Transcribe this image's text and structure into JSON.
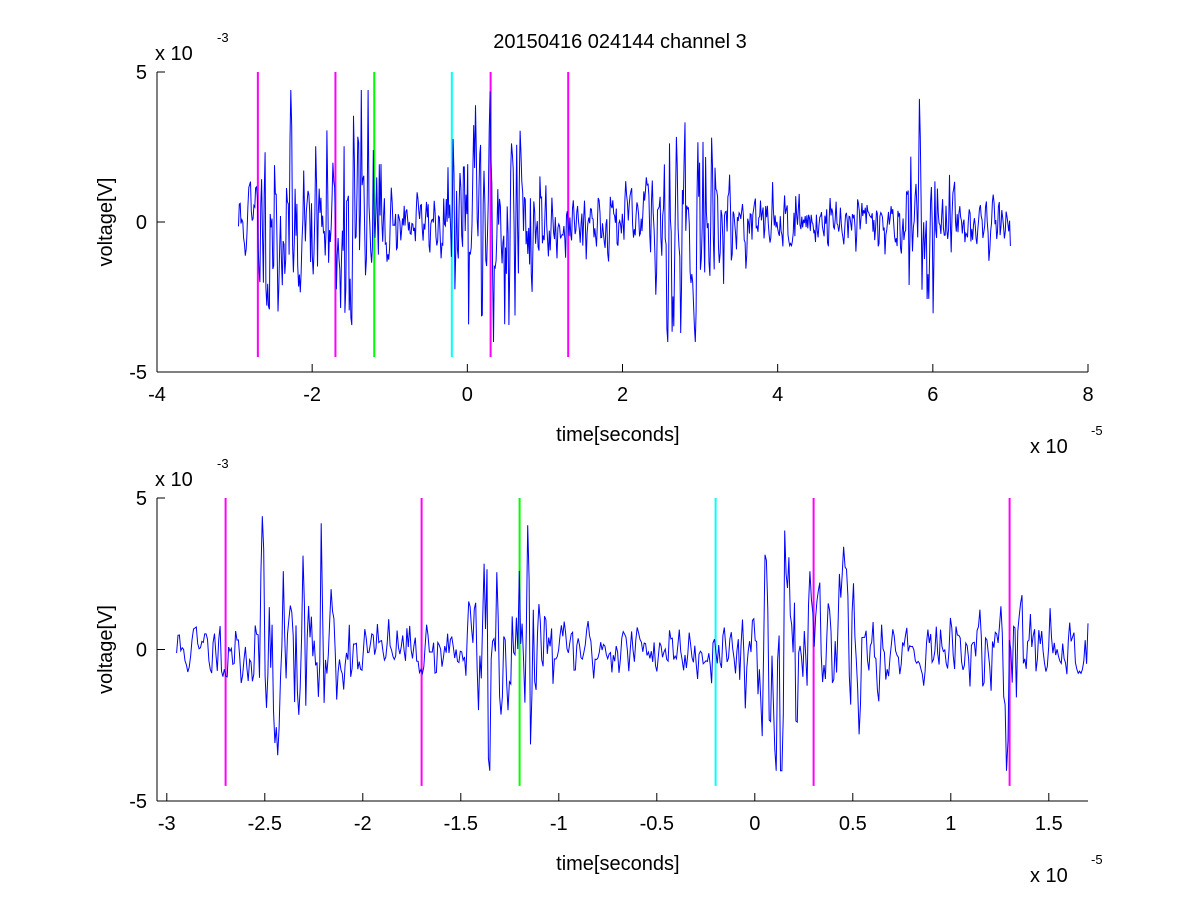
{
  "title": "20150416 024144 channel 3",
  "colors": {
    "signal": "#0000ff",
    "marker_magenta": "#ff00ff",
    "marker_green": "#00ff00",
    "marker_cyan": "#00ffff",
    "axis": "#000000"
  },
  "chart_data": [
    {
      "type": "line",
      "title": "20150416 024144 channel 3",
      "xlabel": "time[seconds]",
      "ylabel": "voltage[V]",
      "x_exponent_label": "x 10",
      "x_exponent": "-5",
      "y_exponent_label": "x 10",
      "y_exponent": "-3",
      "xlim": [
        -4,
        8
      ],
      "ylim": [
        -5,
        5
      ],
      "xticks": [
        -4,
        -2,
        0,
        2,
        4,
        6,
        8
      ],
      "xtick_labels": [
        "-4",
        "-2",
        "0",
        "2",
        "4",
        "6",
        "8"
      ],
      "yticks": [
        -5,
        0,
        5
      ],
      "ytick_labels": [
        "-5",
        "0",
        "5"
      ],
      "grid": false,
      "signal": {
        "x_start": -2.95,
        "x_end": 7.0,
        "n": 900,
        "seed": 11,
        "bursts": [
          {
            "x": -2.4,
            "amp": 1.6,
            "w": 0.35
          },
          {
            "x": -1.6,
            "amp": 1.2,
            "w": 0.3
          },
          {
            "x": -1.35,
            "amp": 1.8,
            "w": 0.25
          },
          {
            "x": 0.2,
            "amp": 1.9,
            "w": 0.4
          },
          {
            "x": 0.7,
            "amp": 1.3,
            "w": 0.3
          },
          {
            "x": 2.8,
            "amp": 2.0,
            "w": 0.4
          },
          {
            "x": 5.9,
            "amp": 1.2,
            "w": 0.3
          }
        ]
      },
      "markers": [
        {
          "x": -2.7,
          "color": "#ff00ff",
          "ymin": -4.5,
          "ymax": 5
        },
        {
          "x": -1.7,
          "color": "#ff00ff",
          "ymin": -4.5,
          "ymax": 5
        },
        {
          "x": -1.2,
          "color": "#00ff00",
          "ymin": -4.5,
          "ymax": 5
        },
        {
          "x": -0.2,
          "color": "#00ffff",
          "ymin": -4.5,
          "ymax": 5
        },
        {
          "x": 0.3,
          "color": "#ff00ff",
          "ymin": -4.5,
          "ymax": 5
        },
        {
          "x": 1.3,
          "color": "#ff00ff",
          "ymin": -4.5,
          "ymax": 5
        }
      ]
    },
    {
      "type": "line",
      "xlabel": "time[seconds]",
      "ylabel": "voltage[V]",
      "x_exponent_label": "x 10",
      "x_exponent": "-5",
      "y_exponent_label": "x 10",
      "y_exponent": "-3",
      "xlim": [
        -3.05,
        1.7
      ],
      "ylim": [
        -5,
        5
      ],
      "xticks": [
        -3,
        -2.5,
        -2,
        -1.5,
        -1,
        -0.5,
        0,
        0.5,
        1,
        1.5
      ],
      "xtick_labels": [
        "-3",
        "-2.5",
        "-2",
        "-1.5",
        "-1",
        "-0.5",
        "0",
        "0.5",
        "1",
        "1.5"
      ],
      "yticks": [
        -5,
        0,
        5
      ],
      "ytick_labels": [
        "-5",
        "0",
        "5"
      ],
      "grid": false,
      "signal": {
        "x_start": -2.95,
        "x_end": 1.7,
        "n": 650,
        "seed": 11,
        "bursts": [
          {
            "x": -2.45,
            "amp": 1.8,
            "w": 0.12
          },
          {
            "x": -2.2,
            "amp": 1.4,
            "w": 0.1
          },
          {
            "x": -1.35,
            "amp": 2.4,
            "w": 0.08
          },
          {
            "x": -1.15,
            "amp": 1.4,
            "w": 0.08
          },
          {
            "x": 0.12,
            "amp": 2.2,
            "w": 0.12
          },
          {
            "x": 0.45,
            "amp": 1.7,
            "w": 0.12
          },
          {
            "x": 1.3,
            "amp": 1.1,
            "w": 0.1
          }
        ]
      },
      "markers": [
        {
          "x": -2.7,
          "color": "#ff00ff",
          "ymin": -4.5,
          "ymax": 5
        },
        {
          "x": -1.7,
          "color": "#ff00ff",
          "ymin": -4.5,
          "ymax": 5
        },
        {
          "x": -1.2,
          "color": "#00ff00",
          "ymin": -4.5,
          "ymax": 5
        },
        {
          "x": -0.2,
          "color": "#00ffff",
          "ymin": -4.5,
          "ymax": 5
        },
        {
          "x": 0.3,
          "color": "#ff00ff",
          "ymin": -4.5,
          "ymax": 5
        },
        {
          "x": 1.3,
          "color": "#ff00ff",
          "ymin": -4.5,
          "ymax": 5
        }
      ]
    }
  ]
}
